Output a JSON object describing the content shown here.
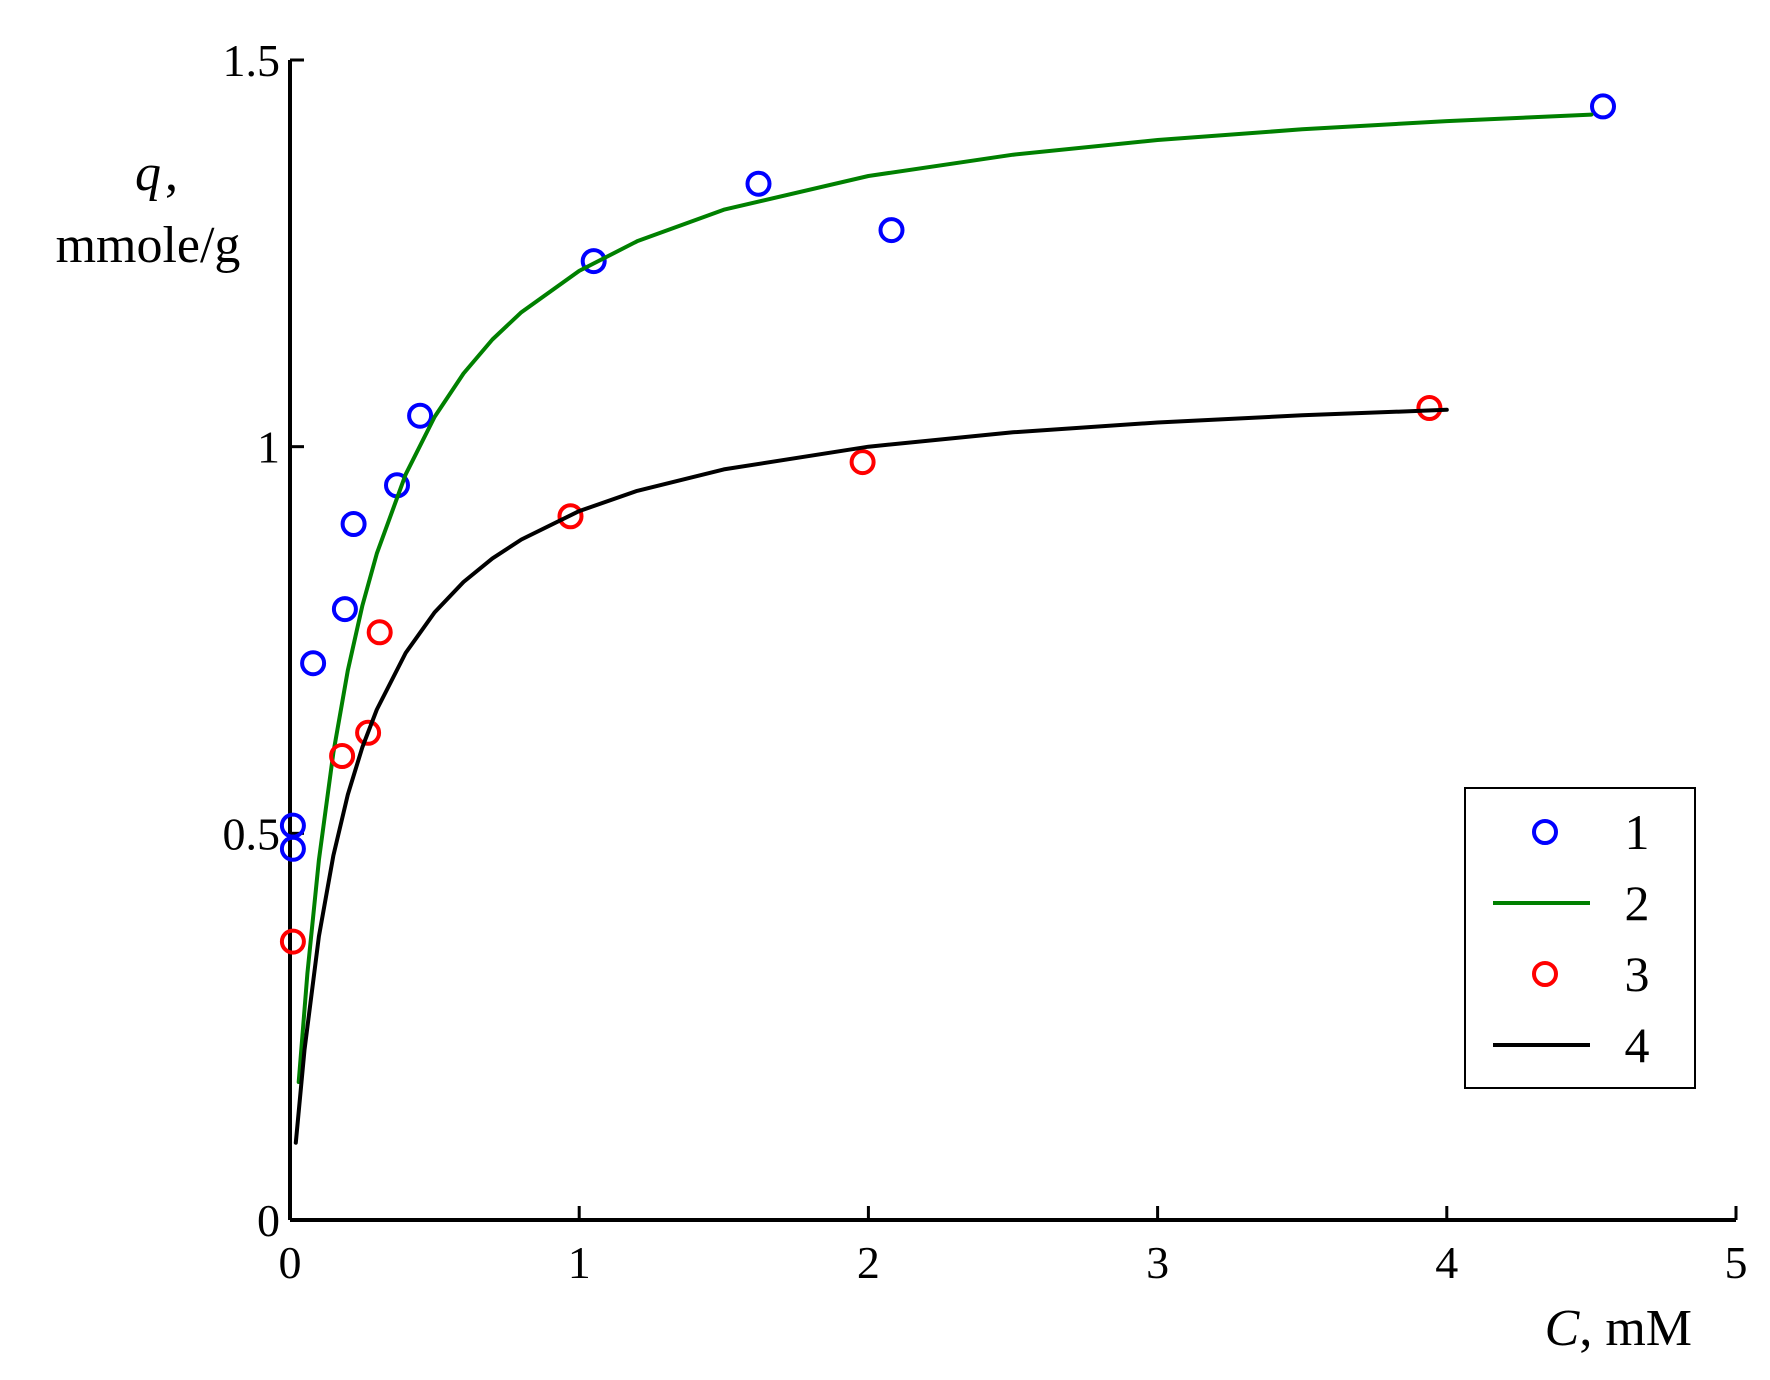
{
  "chart_data": {
    "type": "scatter",
    "x_axis": {
      "label_var": "C",
      "label_unit": ", mM",
      "range": [
        0,
        5
      ],
      "ticks": [
        0,
        1,
        2,
        3,
        4,
        5
      ],
      "tick_labels": [
        "0",
        "1",
        "2",
        "3",
        "4",
        "5"
      ]
    },
    "y_axis": {
      "label_var": "q",
      "label_comma": ",",
      "label_unit": "mmole/g",
      "range": [
        0,
        1.5
      ],
      "ticks": [
        0,
        0.5,
        1,
        1.5
      ],
      "tick_labels": [
        "0",
        "0.5",
        "1",
        "1.5"
      ]
    },
    "grid": false,
    "legend": {
      "placement": "bottom-right"
    },
    "series": [
      {
        "name": "1",
        "kind": "scatter",
        "color": "#0000ff",
        "x": [
          0.01,
          0.01,
          0.08,
          0.19,
          0.22,
          0.37,
          0.45,
          1.05,
          1.62,
          2.08,
          4.54
        ],
        "y": [
          0.51,
          0.48,
          0.72,
          0.79,
          0.9,
          0.95,
          1.04,
          1.24,
          1.34,
          1.28,
          1.44
        ]
      },
      {
        "name": "2",
        "kind": "line",
        "color": "#008000",
        "model": "langmuir",
        "qmax": 1.5,
        "K": 4.5,
        "x": [
          0.03,
          0.06,
          0.1,
          0.15,
          0.2,
          0.25,
          0.3,
          0.4,
          0.5,
          0.6,
          0.7,
          0.8,
          1.0,
          1.2,
          1.5,
          2.0,
          2.5,
          3.0,
          3.5,
          4.0,
          4.5
        ]
      },
      {
        "name": "3",
        "kind": "scatter",
        "color": "#ff0000",
        "x": [
          0.01,
          0.18,
          0.27,
          0.31,
          0.97,
          1.98,
          3.94
        ],
        "y": [
          0.36,
          0.6,
          0.63,
          0.76,
          0.91,
          0.98,
          1.05
        ]
      },
      {
        "name": "4",
        "kind": "line",
        "color": "#000000",
        "model": "langmuir",
        "qmax": 1.1,
        "K": 5.0,
        "x": [
          0.02,
          0.05,
          0.1,
          0.15,
          0.2,
          0.25,
          0.3,
          0.4,
          0.5,
          0.6,
          0.7,
          0.8,
          1.0,
          1.2,
          1.5,
          2.0,
          2.5,
          3.0,
          3.5,
          4.0
        ]
      }
    ]
  }
}
